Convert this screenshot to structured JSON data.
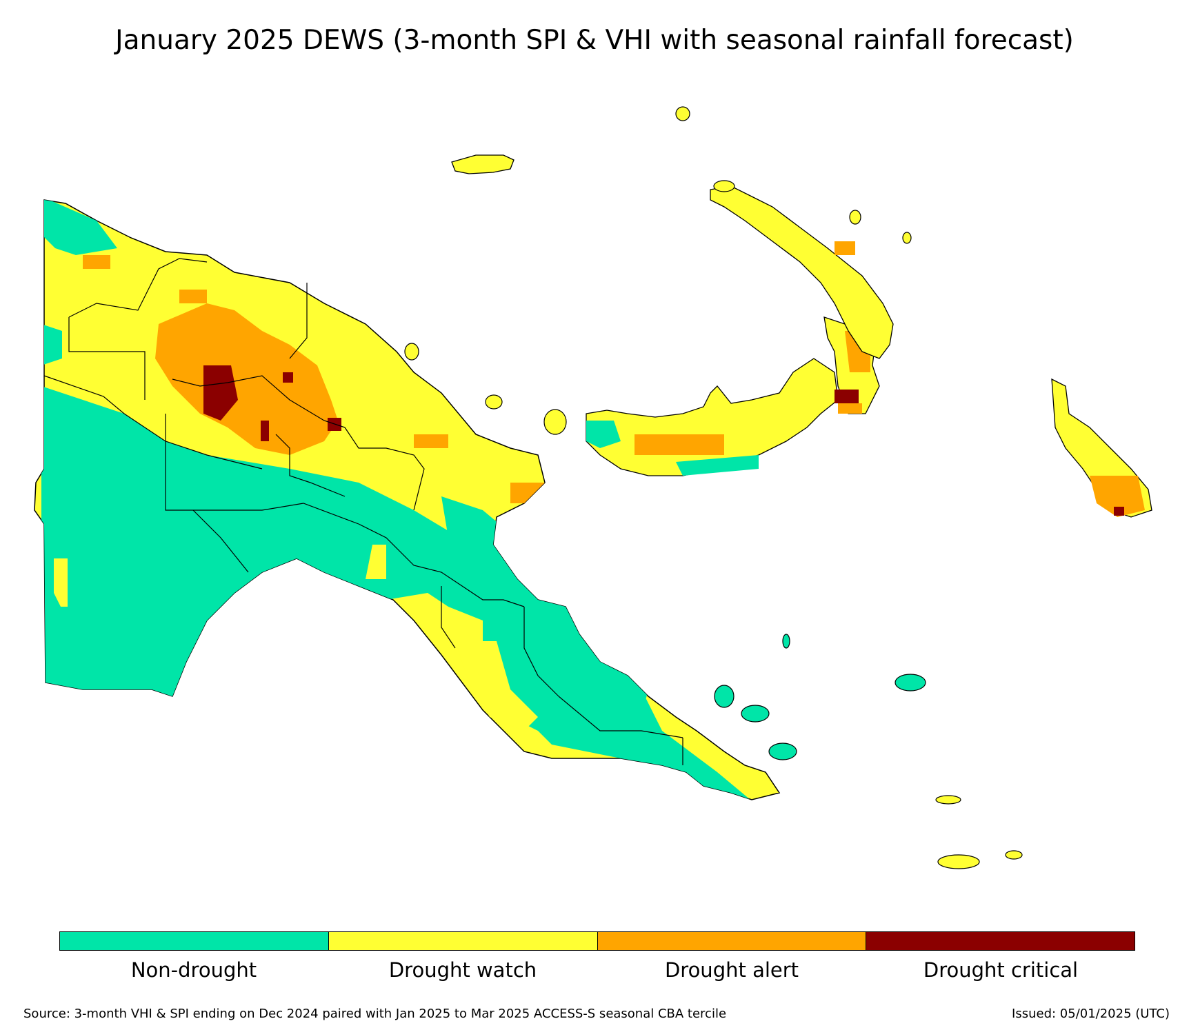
{
  "title": "January 2025 DEWS (3-month SPI & VHI with seasonal rainfall forecast)",
  "legend": [
    {
      "label": "Non-drought",
      "color": "#00e5a8"
    },
    {
      "label": "Drought watch",
      "color": "#ffff33"
    },
    {
      "label": "Drought alert",
      "color": "#ffa500"
    },
    {
      "label": "Drought critical",
      "color": "#8b0000"
    }
  ],
  "footer": {
    "source": "Source: 3-month VHI & SPI ending on Dec 2024 paired with Jan 2025 to Mar 2025 ACCESS-S seasonal CBA tercile",
    "issued": "Issued: 05/01/2025 (UTC)"
  }
}
